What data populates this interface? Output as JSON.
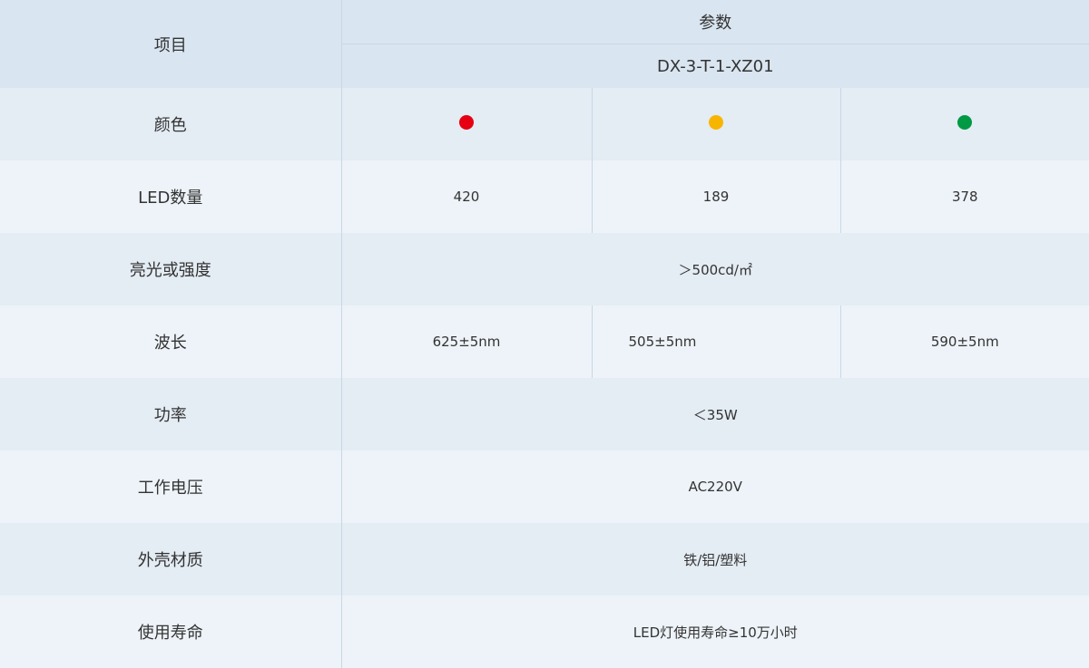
{
  "header": {
    "item": "项目",
    "params": "参数",
    "model": "DX-3-T-1-XZ01"
  },
  "colors": {
    "label": "颜色",
    "dots": [
      "#e60012",
      "#f8b500",
      "#009944"
    ]
  },
  "rows": [
    {
      "label": "LED数量",
      "values": [
        "420",
        "189",
        "378"
      ]
    },
    {
      "label": "亮光或强度",
      "value": "＞500cd/㎡"
    },
    {
      "label": "波长",
      "values": [
        "625±5nm",
        "505±5nm",
        "590±5nm"
      ]
    },
    {
      "label": "功率",
      "value": "＜35W"
    },
    {
      "label": "工作电压",
      "value": "AC220V"
    },
    {
      "label": "外壳材质",
      "value": "铁/铝/塑料"
    },
    {
      "label": "使用寿命",
      "value": "LED灯使用寿命≥10万小时"
    }
  ]
}
